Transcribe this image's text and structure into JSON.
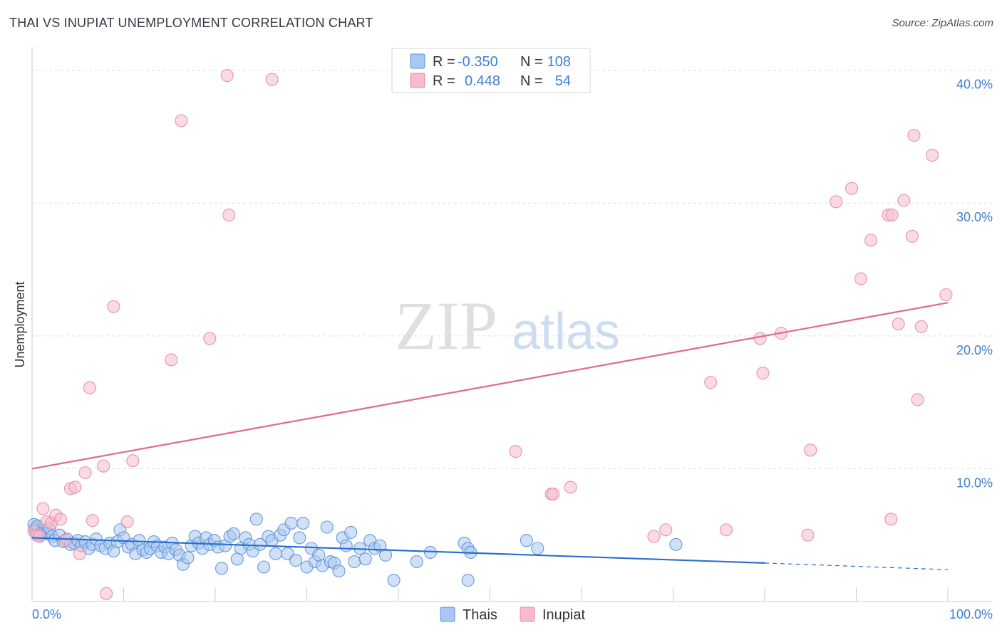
{
  "title": "THAI VS INUPIAT UNEMPLOYMENT CORRELATION CHART",
  "source": "Source: ZipAtlas.com",
  "watermark": {
    "zip": "ZIP",
    "atlas": "atlas"
  },
  "colors": {
    "blue_fill": "#a9c8f0",
    "blue_stroke": "#5b8fd6",
    "blue_line": "#2a6fd0",
    "pink_fill": "#f6bccd",
    "pink_stroke": "#e48aa6",
    "pink_line": "#e0698f",
    "tick_text": "#3f7fd0",
    "grid": "#dddddd"
  },
  "stats": {
    "r_label": "R =",
    "n_label": "N =",
    "thais": {
      "r": "-0.350",
      "n": "108"
    },
    "inupiat": {
      "r": "0.448",
      "n": "54"
    }
  },
  "chart_data": {
    "type": "scatter",
    "title": "THAI VS INUPIAT UNEMPLOYMENT CORRELATION CHART",
    "xlabel": "",
    "ylabel": "Unemployment",
    "xlim": [
      0,
      100
    ],
    "ylim": [
      0,
      41
    ],
    "x_tick_labels": [
      "0.0%",
      "100.0%"
    ],
    "y_ticks": [
      10,
      20,
      30,
      40
    ],
    "y_tick_labels": [
      "10.0%",
      "20.0%",
      "30.0%",
      "40.0%"
    ],
    "legend": [
      "Thais",
      "Inupiat"
    ],
    "series": [
      {
        "name": "Thais",
        "trend": {
          "x0": 0,
          "y0": 4.8,
          "x1": 80,
          "y1": 2.9,
          "dash_x1": 100,
          "dash_y1": 2.4
        },
        "points": [
          [
            0.3,
            5.5
          ],
          [
            0.5,
            5.2
          ],
          [
            0.7,
            5.6
          ],
          [
            0.9,
            5.0
          ],
          [
            1.1,
            5.4
          ],
          [
            1.3,
            5.1
          ],
          [
            1.6,
            5.3
          ],
          [
            1.9,
            5.5
          ],
          [
            2.2,
            4.9
          ],
          [
            2.5,
            4.6
          ],
          [
            3.0,
            5.0
          ],
          [
            3.4,
            4.5
          ],
          [
            3.8,
            4.7
          ],
          [
            4.2,
            4.3
          ],
          [
            4.6,
            4.4
          ],
          [
            5.0,
            4.6
          ],
          [
            5.4,
            4.2
          ],
          [
            5.8,
            4.5
          ],
          [
            6.2,
            4.0
          ],
          [
            6.6,
            4.3
          ],
          [
            7.0,
            4.7
          ],
          [
            7.5,
            4.2
          ],
          [
            8.0,
            4.0
          ],
          [
            8.5,
            4.4
          ],
          [
            8.9,
            3.8
          ],
          [
            9.3,
            4.5
          ],
          [
            9.6,
            5.4
          ],
          [
            10.0,
            4.8
          ],
          [
            10.5,
            4.1
          ],
          [
            10.9,
            4.3
          ],
          [
            11.3,
            3.6
          ],
          [
            11.7,
            4.6
          ],
          [
            12.1,
            3.9
          ],
          [
            12.5,
            3.7
          ],
          [
            12.9,
            4.0
          ],
          [
            13.3,
            4.5
          ],
          [
            13.7,
            4.2
          ],
          [
            14.1,
            3.7
          ],
          [
            14.5,
            4.1
          ],
          [
            14.9,
            3.6
          ],
          [
            15.3,
            4.4
          ],
          [
            15.7,
            3.9
          ],
          [
            16.1,
            3.5
          ],
          [
            16.5,
            2.8
          ],
          [
            17.0,
            3.3
          ],
          [
            17.4,
            4.2
          ],
          [
            17.8,
            4.9
          ],
          [
            18.2,
            4.4
          ],
          [
            18.6,
            4.0
          ],
          [
            19.0,
            4.8
          ],
          [
            19.4,
            4.3
          ],
          [
            19.9,
            4.6
          ],
          [
            20.3,
            4.1
          ],
          [
            20.7,
            2.5
          ],
          [
            21.1,
            4.2
          ],
          [
            21.6,
            4.9
          ],
          [
            22.0,
            5.1
          ],
          [
            22.4,
            3.2
          ],
          [
            22.8,
            4.0
          ],
          [
            23.3,
            4.8
          ],
          [
            23.7,
            4.3
          ],
          [
            24.1,
            3.8
          ],
          [
            24.5,
            6.2
          ],
          [
            24.9,
            4.3
          ],
          [
            25.3,
            2.6
          ],
          [
            25.8,
            4.9
          ],
          [
            26.2,
            4.6
          ],
          [
            26.6,
            3.6
          ],
          [
            27.1,
            5.0
          ],
          [
            27.5,
            5.4
          ],
          [
            27.9,
            3.6
          ],
          [
            28.3,
            5.9
          ],
          [
            28.8,
            3.1
          ],
          [
            29.2,
            4.8
          ],
          [
            29.6,
            5.9
          ],
          [
            30.0,
            2.6
          ],
          [
            30.5,
            4.0
          ],
          [
            30.9,
            3.0
          ],
          [
            31.3,
            3.5
          ],
          [
            31.7,
            2.7
          ],
          [
            32.2,
            5.6
          ],
          [
            32.6,
            3.0
          ],
          [
            33.0,
            2.9
          ],
          [
            33.5,
            2.3
          ],
          [
            33.9,
            4.8
          ],
          [
            34.3,
            4.2
          ],
          [
            34.8,
            5.2
          ],
          [
            35.2,
            3.0
          ],
          [
            35.8,
            4.0
          ],
          [
            36.4,
            3.2
          ],
          [
            36.9,
            4.6
          ],
          [
            37.4,
            4.0
          ],
          [
            38.0,
            4.2
          ],
          [
            38.6,
            3.5
          ],
          [
            39.5,
            1.6
          ],
          [
            42.0,
            3.0
          ],
          [
            43.5,
            3.7
          ],
          [
            47.2,
            4.4
          ],
          [
            47.6,
            4.0
          ],
          [
            47.9,
            3.7
          ],
          [
            47.6,
            1.6
          ],
          [
            54.0,
            4.6
          ],
          [
            55.2,
            4.0
          ],
          [
            70.3,
            4.3
          ],
          [
            0.2,
            5.8
          ],
          [
            0.4,
            5.3
          ],
          [
            0.6,
            5.7
          ],
          [
            0.8,
            5.1
          ]
        ]
      },
      {
        "name": "Inupiat",
        "trend": {
          "x0": 0,
          "y0": 10.0,
          "x1": 100,
          "y1": 22.5
        },
        "points": [
          [
            0.2,
            5.3
          ],
          [
            0.5,
            5.0
          ],
          [
            0.8,
            4.9
          ],
          [
            1.2,
            7.0
          ],
          [
            1.6,
            6.0
          ],
          [
            2.1,
            5.9
          ],
          [
            2.6,
            6.5
          ],
          [
            3.1,
            6.2
          ],
          [
            3.6,
            4.6
          ],
          [
            4.2,
            8.5
          ],
          [
            4.7,
            8.6
          ],
          [
            5.2,
            3.6
          ],
          [
            5.8,
            9.7
          ],
          [
            6.3,
            16.1
          ],
          [
            6.6,
            6.1
          ],
          [
            7.8,
            10.2
          ],
          [
            8.1,
            0.6
          ],
          [
            8.9,
            22.2
          ],
          [
            10.4,
            6.0
          ],
          [
            11.0,
            10.6
          ],
          [
            15.2,
            18.2
          ],
          [
            16.3,
            36.2
          ],
          [
            19.4,
            19.8
          ],
          [
            21.3,
            39.6
          ],
          [
            21.5,
            29.1
          ],
          [
            26.2,
            39.3
          ],
          [
            52.8,
            11.3
          ],
          [
            56.7,
            8.1
          ],
          [
            56.9,
            8.1
          ],
          [
            58.8,
            8.6
          ],
          [
            67.9,
            4.9
          ],
          [
            69.2,
            5.4
          ],
          [
            74.1,
            16.5
          ],
          [
            75.8,
            5.4
          ],
          [
            79.5,
            19.8
          ],
          [
            79.8,
            17.2
          ],
          [
            81.8,
            20.2
          ],
          [
            84.7,
            5.0
          ],
          [
            85.0,
            11.4
          ],
          [
            87.8,
            30.1
          ],
          [
            89.5,
            31.1
          ],
          [
            90.5,
            24.3
          ],
          [
            91.6,
            27.2
          ],
          [
            93.5,
            29.1
          ],
          [
            93.8,
            6.2
          ],
          [
            93.9,
            29.1
          ],
          [
            94.6,
            20.9
          ],
          [
            95.2,
            30.2
          ],
          [
            96.1,
            27.5
          ],
          [
            96.3,
            35.1
          ],
          [
            96.7,
            15.2
          ],
          [
            97.1,
            20.7
          ],
          [
            98.3,
            33.6
          ],
          [
            99.8,
            23.1
          ]
        ]
      }
    ]
  }
}
